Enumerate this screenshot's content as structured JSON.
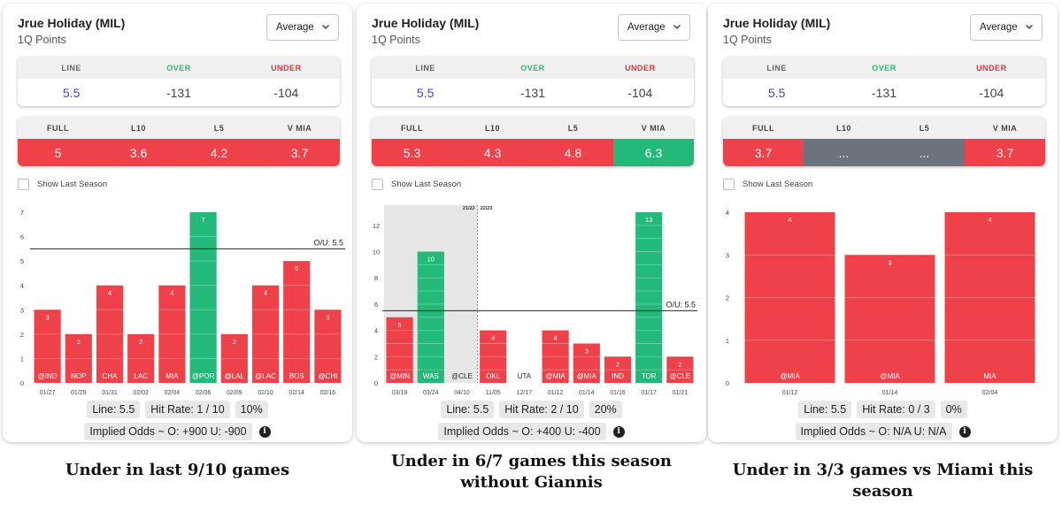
{
  "colors": {
    "under": "#ee4149",
    "over": "#23b97a",
    "na": "#6c737d",
    "accent_line": "#4a3fc0"
  },
  "panels": [
    {
      "title": "Jrue Holiday (MIL)",
      "subtitle": "1Q Points",
      "dropdown": "Average",
      "odds": {
        "h_line": "LINE",
        "h_over": "OVER",
        "h_under": "UNDER",
        "line": "5.5",
        "over": "-131",
        "under": "-104"
      },
      "averages": [
        {
          "label": "FULL",
          "value": "5",
          "status": "under"
        },
        {
          "label": "L10",
          "value": "3.6",
          "status": "under"
        },
        {
          "label": "L5",
          "value": "4.2",
          "status": "under"
        },
        {
          "label": "V MIA",
          "value": "3.7",
          "status": "under"
        }
      ],
      "show_last_season": "Show Last Season",
      "stats": {
        "line": "Line: 5.5",
        "hit_rate": "Hit Rate: 1 / 10",
        "pct": "10%"
      },
      "implied": "Implied Odds ~ O: +900 U: -900",
      "caption": "Under in last 9/10 games"
    },
    {
      "title": "Jrue Holiday (MIL)",
      "subtitle": "1Q Points",
      "dropdown": "Average",
      "odds": {
        "h_line": "LINE",
        "h_over": "OVER",
        "h_under": "UNDER",
        "line": "5.5",
        "over": "-131",
        "under": "-104"
      },
      "averages": [
        {
          "label": "FULL",
          "value": "5.3",
          "status": "under"
        },
        {
          "label": "L10",
          "value": "4.3",
          "status": "under"
        },
        {
          "label": "L5",
          "value": "4.8",
          "status": "under"
        },
        {
          "label": "V MIA",
          "value": "6.3",
          "status": "over"
        }
      ],
      "show_last_season": "Show Last Season",
      "stats": {
        "line": "Line: 5.5",
        "hit_rate": "Hit Rate: 2 / 10",
        "pct": "20%"
      },
      "implied": "Implied Odds ~ O: +400 U: -400",
      "caption": "Under in 6/7 games this season without Giannis"
    },
    {
      "title": "Jrue Holiday (MIL)",
      "subtitle": "1Q Points",
      "dropdown": "Average",
      "odds": {
        "h_line": "LINE",
        "h_over": "OVER",
        "h_under": "UNDER",
        "line": "5.5",
        "over": "-131",
        "under": "-104"
      },
      "averages": [
        {
          "label": "FULL",
          "value": "3.7",
          "status": "under"
        },
        {
          "label": "L10",
          "value": "...",
          "status": "na"
        },
        {
          "label": "L5",
          "value": "...",
          "status": "na"
        },
        {
          "label": "V MIA",
          "value": "3.7",
          "status": "under"
        }
      ],
      "show_last_season": "Show Last Season",
      "stats": {
        "line": "Line: 5.5",
        "hit_rate": "Hit Rate: 0 / 3",
        "pct": "0%"
      },
      "implied": "Implied Odds ~ O: N/A U: N/A",
      "caption": "Under in 3/3 games vs Miami this season"
    }
  ],
  "chart_data": [
    {
      "type": "bar",
      "ylim": [
        0,
        7
      ],
      "yticks": [
        "0",
        "1",
        "2",
        "3",
        "4",
        "5",
        "6",
        "7"
      ],
      "line": 5.5,
      "line_label": "O/U: 5.5",
      "categories": [
        "01/27",
        "01/29",
        "01/31",
        "02/02",
        "02/04",
        "02/06",
        "02/09",
        "02/10",
        "02/14",
        "02/16"
      ],
      "opponents": [
        "@IND",
        "NOP",
        "CHA",
        "LAC",
        "MIA",
        "@POR",
        "@LAL",
        "@LAC",
        "BOS",
        "@CHI"
      ],
      "values": [
        3,
        2,
        4,
        2,
        4,
        7,
        2,
        4,
        5,
        3
      ],
      "value_labels": [
        "3",
        "2",
        "4",
        "2",
        "4",
        "7",
        "2",
        "4",
        "5",
        "3"
      ],
      "result": [
        "under",
        "under",
        "under",
        "under",
        "under",
        "over",
        "under",
        "under",
        "under",
        "under"
      ]
    },
    {
      "type": "bar",
      "ylim": [
        0,
        13
      ],
      "yticks": [
        "0",
        "2",
        "4",
        "6",
        "8",
        "10",
        "12"
      ],
      "line": 5.5,
      "line_label": "O/U: 5.5",
      "season_labels": [
        "21/22",
        "22/23"
      ],
      "categories": [
        "03/19",
        "03/24",
        "04/10",
        "11/05",
        "12/17",
        "01/12",
        "01/14",
        "01/16",
        "01/17",
        "01/21"
      ],
      "opponents": [
        "@MIN",
        "WAS",
        "@CLE",
        "OKL",
        "UTA",
        "@MIA",
        "@MIA",
        "IND",
        "TOR",
        "@CLE"
      ],
      "values": [
        5,
        10,
        0,
        4,
        0,
        4,
        3,
        2,
        13,
        2
      ],
      "value_labels": [
        "5",
        "10",
        "",
        "4",
        "",
        "4",
        "3",
        "2",
        "13",
        "2"
      ],
      "result": [
        "under",
        "over",
        "none",
        "under",
        "none",
        "under",
        "under",
        "under",
        "over",
        "under"
      ]
    },
    {
      "type": "bar",
      "ylim": [
        0,
        4
      ],
      "yticks": [
        "0",
        "1",
        "2",
        "3",
        "4"
      ],
      "categories": [
        "01/12",
        "01/14",
        "02/04"
      ],
      "opponents": [
        "@MIA",
        "@MIA",
        "MIA"
      ],
      "values": [
        4,
        3,
        4
      ],
      "value_labels": [
        "4",
        "3",
        "4"
      ],
      "result": [
        "under",
        "under",
        "under"
      ]
    }
  ]
}
